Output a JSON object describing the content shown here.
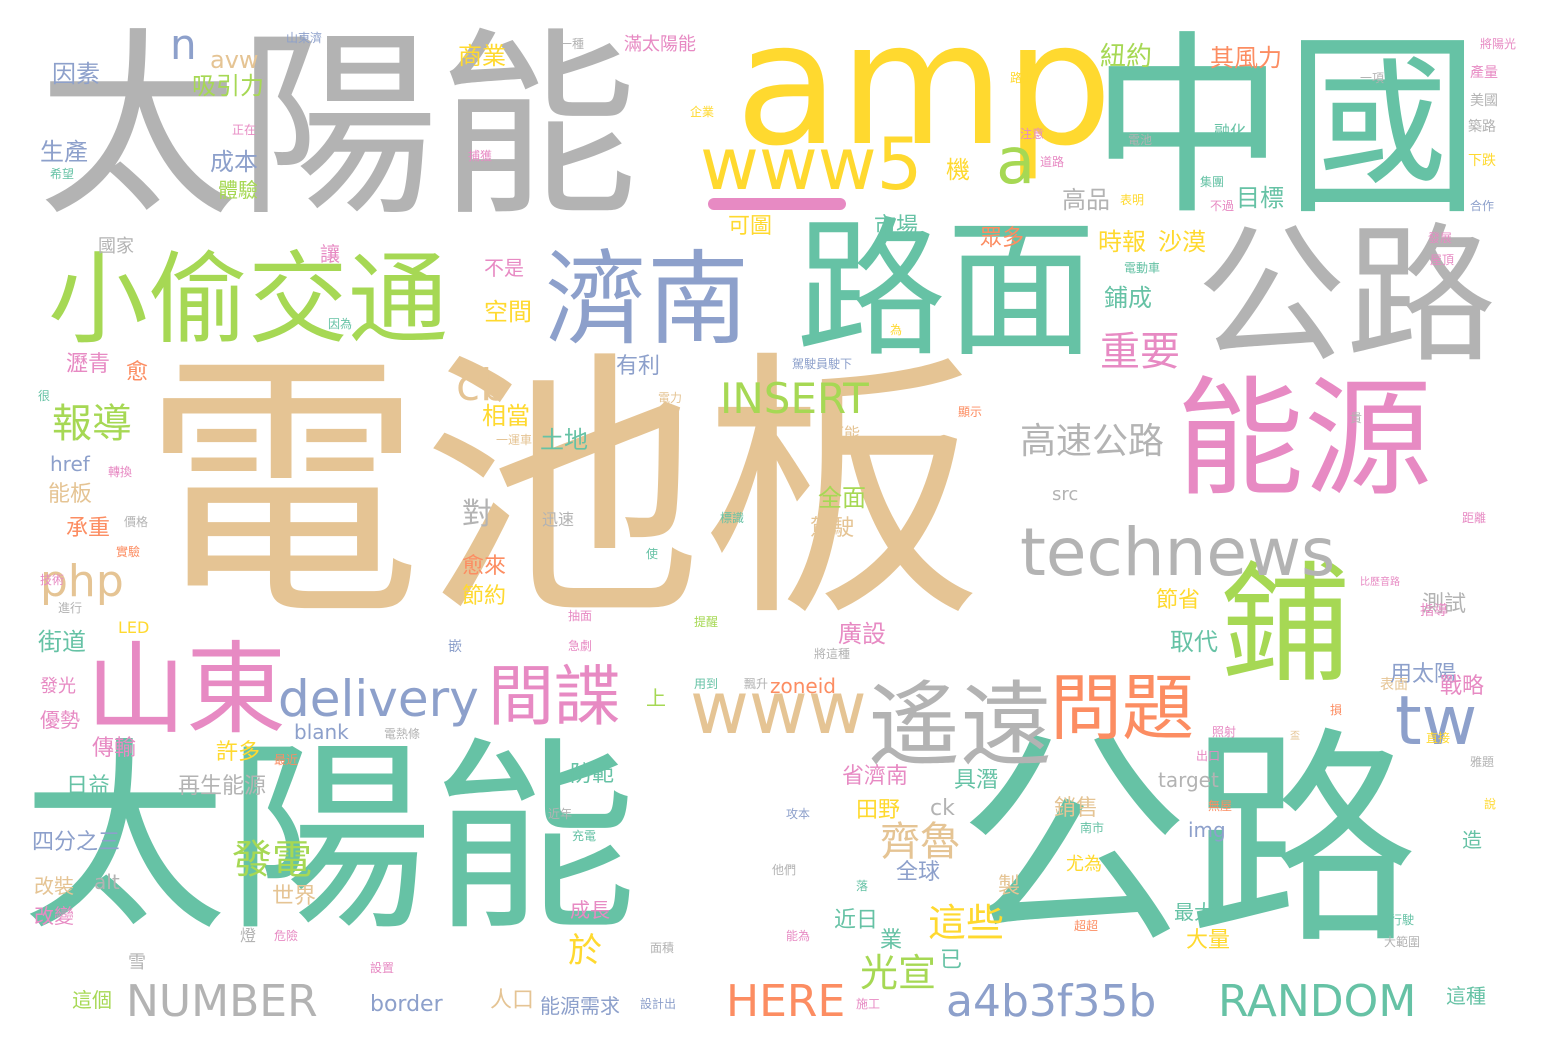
{
  "palette": {
    "teal": "#66c2a5",
    "tan": "#e5c494",
    "gray": "#b3b3b3",
    "yellow": "#ffd92f",
    "lime": "#a6d854",
    "pink": "#e78ac3",
    "blue": "#8da0cb",
    "orange": "#fc8d62"
  },
  "words": [
    {
      "text": "電池板",
      "color": "tan"
    },
    {
      "text": "太陽能",
      "color": "gray"
    },
    {
      "text": "太陽能",
      "color": "teal"
    },
    {
      "text": "公路",
      "color": "teal"
    },
    {
      "text": "中國",
      "color": "teal"
    },
    {
      "text": "amp",
      "color": "yellow"
    },
    {
      "text": "路面",
      "color": "teal"
    },
    {
      "text": "公路",
      "color": "gray"
    },
    {
      "text": "能源",
      "color": "pink"
    },
    {
      "text": "鋪",
      "color": "lime"
    },
    {
      "text": "濟南",
      "color": "blue"
    },
    {
      "text": "小偷交通",
      "color": "lime"
    },
    {
      "text": "山東",
      "color": "pink"
    },
    {
      "text": "www5",
      "color": "yellow"
    },
    {
      "text": "technews",
      "color": "gray"
    },
    {
      "text": "遙遠",
      "color": "gray"
    },
    {
      "text": "問題",
      "color": "orange"
    },
    {
      "text": "www",
      "color": "tan"
    },
    {
      "text": "間諜",
      "color": "pink"
    },
    {
      "text": "delivery",
      "color": "blue"
    },
    {
      "text": "tw",
      "color": "blue"
    },
    {
      "text": "a",
      "color": "lime"
    },
    {
      "text": "INSERT",
      "color": "lime"
    },
    {
      "text": "php",
      "color": "tan"
    },
    {
      "text": "cb",
      "color": "tan"
    },
    {
      "text": "n",
      "color": "blue"
    },
    {
      "text": "NUMBER",
      "color": "gray"
    },
    {
      "text": "HERE",
      "color": "orange"
    },
    {
      "text": "a4b3f35b",
      "color": "blue"
    },
    {
      "text": "RANDOM",
      "color": "teal"
    },
    {
      "text": "高速公路",
      "color": "gray"
    },
    {
      "text": "重要",
      "color": "pink"
    },
    {
      "text": "報導",
      "color": "lime"
    },
    {
      "text": "齊魯",
      "color": "tan"
    },
    {
      "text": "發電",
      "color": "lime"
    },
    {
      "text": "這些",
      "color": "yellow"
    },
    {
      "text": "光宣",
      "color": "lime"
    },
    {
      "text": "於",
      "color": "yellow"
    },
    {
      "text": "avw",
      "color": "tan"
    },
    {
      "text": "吸引力",
      "color": "lime"
    },
    {
      "text": "因素",
      "color": "blue"
    },
    {
      "text": "生產",
      "color": "blue"
    },
    {
      "text": "成本",
      "color": "blue"
    },
    {
      "text": "體驗",
      "color": "lime"
    },
    {
      "text": "市場",
      "color": "teal"
    },
    {
      "text": "商業",
      "color": "yellow"
    },
    {
      "text": "紐約",
      "color": "lime"
    },
    {
      "text": "其風力",
      "color": "orange"
    },
    {
      "text": "高品",
      "color": "gray"
    },
    {
      "text": "目標",
      "color": "teal"
    },
    {
      "text": "時報",
      "color": "yellow"
    },
    {
      "text": "沙漠",
      "color": "yellow"
    },
    {
      "text": "鋪成",
      "color": "teal"
    },
    {
      "text": "空間",
      "color": "yellow"
    },
    {
      "text": "不是",
      "color": "pink"
    },
    {
      "text": "讓",
      "color": "pink"
    },
    {
      "text": "可圖",
      "color": "yellow"
    },
    {
      "text": "眾多",
      "color": "orange"
    },
    {
      "text": "機",
      "color": "yellow"
    },
    {
      "text": "有利",
      "color": "blue"
    },
    {
      "text": "瀝青",
      "color": "pink"
    },
    {
      "text": "愈",
      "color": "orange"
    },
    {
      "text": "相當",
      "color": "yellow"
    },
    {
      "text": "土地",
      "color": "teal"
    },
    {
      "text": "對",
      "color": "gray"
    },
    {
      "text": "全面",
      "color": "lime"
    },
    {
      "text": "駕駛",
      "color": "tan"
    },
    {
      "text": "href",
      "color": "blue"
    },
    {
      "text": "能板",
      "color": "tan"
    },
    {
      "text": "承重",
      "color": "orange"
    },
    {
      "text": "愈來",
      "color": "orange"
    },
    {
      "text": "節約",
      "color": "yellow"
    },
    {
      "text": "節省",
      "color": "yellow"
    },
    {
      "text": "測試",
      "color": "gray"
    },
    {
      "text": "街道",
      "color": "teal"
    },
    {
      "text": "廣設",
      "color": "pink"
    },
    {
      "text": "取代",
      "color": "teal"
    },
    {
      "text": "用太陽",
      "color": "blue"
    },
    {
      "text": "戰略",
      "color": "pink"
    },
    {
      "text": "zoneid",
      "color": "orange"
    },
    {
      "text": "上",
      "color": "lime"
    },
    {
      "text": "blank",
      "color": "blue"
    },
    {
      "text": "傳輸",
      "color": "pink"
    },
    {
      "text": "日益",
      "color": "teal"
    },
    {
      "text": "再生能源",
      "color": "gray"
    },
    {
      "text": "許多",
      "color": "yellow"
    },
    {
      "text": "防範",
      "color": "teal"
    },
    {
      "text": "省濟南",
      "color": "pink"
    },
    {
      "text": "具潛",
      "color": "teal"
    },
    {
      "text": "田野",
      "color": "yellow"
    },
    {
      "text": "ck",
      "color": "gray"
    },
    {
      "text": "target",
      "color": "gray"
    },
    {
      "text": "銷售",
      "color": "tan"
    },
    {
      "text": "img",
      "color": "blue"
    },
    {
      "text": "四分之三",
      "color": "blue"
    },
    {
      "text": "改裝",
      "color": "tan"
    },
    {
      "text": "改變",
      "color": "pink"
    },
    {
      "text": "alt",
      "color": "gray"
    },
    {
      "text": "世界",
      "color": "tan"
    },
    {
      "text": "全球",
      "color": "blue"
    },
    {
      "text": "近日",
      "color": "teal"
    },
    {
      "text": "業",
      "color": "teal"
    },
    {
      "text": "已",
      "color": "teal"
    },
    {
      "text": "製",
      "color": "tan"
    },
    {
      "text": "尤為",
      "color": "yellow"
    },
    {
      "text": "最大",
      "color": "teal"
    },
    {
      "text": "大量",
      "color": "yellow"
    },
    {
      "text": "造",
      "color": "teal"
    },
    {
      "text": "這種",
      "color": "teal"
    },
    {
      "text": "成長",
      "color": "pink"
    },
    {
      "text": "人口",
      "color": "tan"
    },
    {
      "text": "能源需求",
      "color": "blue"
    },
    {
      "text": "border",
      "color": "blue"
    },
    {
      "text": "這個",
      "color": "lime"
    },
    {
      "text": "雪",
      "color": "gray"
    },
    {
      "text": "src",
      "color": "gray"
    },
    {
      "text": "國家",
      "color": "gray"
    },
    {
      "text": "LED",
      "color": "yellow"
    },
    {
      "text": "優勢",
      "color": "pink"
    },
    {
      "text": "發光",
      "color": "pink"
    },
    {
      "text": "滿太陽能",
      "color": "pink"
    },
    {
      "text": "一種",
      "color": "gray"
    },
    {
      "text": "山東濟",
      "color": "blue"
    },
    {
      "text": "將陽光",
      "color": "pink"
    },
    {
      "text": "產量",
      "color": "pink"
    },
    {
      "text": "美國",
      "color": "gray"
    },
    {
      "text": "築路",
      "color": "gray"
    },
    {
      "text": "下跌",
      "color": "yellow"
    },
    {
      "text": "合作",
      "color": "blue"
    },
    {
      "text": "一項",
      "color": "gray"
    },
    {
      "text": "路上",
      "color": "yellow"
    },
    {
      "text": "企業",
      "color": "yellow"
    },
    {
      "text": "電池",
      "color": "gray"
    },
    {
      "text": "融化",
      "color": "teal"
    },
    {
      "text": "注意",
      "color": "pink"
    },
    {
      "text": "道路",
      "color": "pink"
    },
    {
      "text": "表明",
      "color": "yellow"
    },
    {
      "text": "不過",
      "color": "pink"
    },
    {
      "text": "集團",
      "color": "teal"
    },
    {
      "text": "電動車",
      "color": "teal"
    },
    {
      "text": "發展",
      "color": "pink"
    },
    {
      "text": "屋頂",
      "color": "pink"
    },
    {
      "text": "駕駛員駛下",
      "color": "blue"
    },
    {
      "text": "因為",
      "color": "teal"
    },
    {
      "text": "為",
      "color": "yellow"
    },
    {
      "text": "正在",
      "color": "pink"
    },
    {
      "text": "希望",
      "color": "teal"
    },
    {
      "text": "捕獲",
      "color": "pink"
    },
    {
      "text": "顯示",
      "color": "orange"
    },
    {
      "text": "可能",
      "color": "tan"
    },
    {
      "text": "一運車",
      "color": "tan"
    },
    {
      "text": "很",
      "color": "teal"
    },
    {
      "text": "轉換",
      "color": "pink"
    },
    {
      "text": "價格",
      "color": "gray"
    },
    {
      "text": "實驗",
      "color": "orange"
    },
    {
      "text": "迅速",
      "color": "gray"
    },
    {
      "text": "技術",
      "color": "pink"
    },
    {
      "text": "標識",
      "color": "teal"
    },
    {
      "text": "使",
      "color": "teal"
    },
    {
      "text": "進行",
      "color": "gray"
    },
    {
      "text": "比歷音路",
      "color": "pink"
    },
    {
      "text": "指導",
      "color": "pink"
    },
    {
      "text": "距離",
      "color": "pink"
    },
    {
      "text": "提醒",
      "color": "lime"
    },
    {
      "text": "急劇",
      "color": "pink"
    },
    {
      "text": "抽面",
      "color": "pink"
    },
    {
      "text": "將這種",
      "color": "gray"
    },
    {
      "text": "用到",
      "color": "teal"
    },
    {
      "text": "飄升",
      "color": "gray"
    },
    {
      "text": "表面",
      "color": "tan"
    },
    {
      "text": "出口",
      "color": "pink"
    },
    {
      "text": "照射",
      "color": "pink"
    },
    {
      "text": "嵌",
      "color": "blue"
    },
    {
      "text": "電熱條",
      "color": "gray"
    },
    {
      "text": "最近",
      "color": "orange"
    },
    {
      "text": "近年",
      "color": "gray"
    },
    {
      "text": "充電",
      "color": "teal"
    },
    {
      "text": "攻本",
      "color": "blue"
    },
    {
      "text": "南市",
      "color": "teal"
    },
    {
      "text": "無屋",
      "color": "orange"
    },
    {
      "text": "他們",
      "color": "gray"
    },
    {
      "text": "落",
      "color": "teal"
    },
    {
      "text": "面積",
      "color": "gray"
    },
    {
      "text": "危險",
      "color": "pink"
    },
    {
      "text": "燈",
      "color": "gray"
    },
    {
      "text": "設置",
      "color": "pink"
    },
    {
      "text": "施工",
      "color": "pink"
    },
    {
      "text": "設計出",
      "color": "blue"
    },
    {
      "text": "超超",
      "color": "orange"
    },
    {
      "text": "能為",
      "color": "pink"
    },
    {
      "text": "行駛",
      "color": "teal"
    },
    {
      "text": "大範圍",
      "color": "gray"
    },
    {
      "text": "雅題",
      "color": "gray"
    },
    {
      "text": "說",
      "color": "yellow"
    },
    {
      "text": "直接",
      "color": "yellow"
    },
    {
      "text": "盃",
      "color": "tan"
    },
    {
      "text": "損",
      "color": "orange"
    },
    {
      "text": "電力",
      "color": "tan"
    },
    {
      "text": "貴",
      "color": "gray"
    }
  ]
}
